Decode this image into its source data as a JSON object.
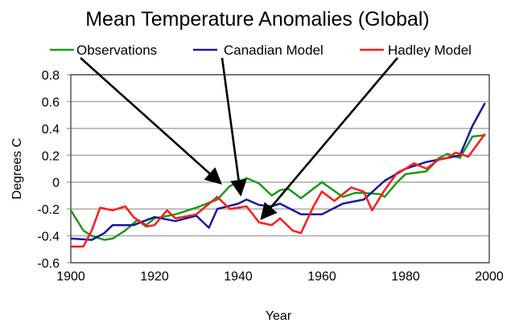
{
  "chart_data": {
    "type": "line",
    "title": "Mean Temperature Anomalies (Global)",
    "xlabel": "Year",
    "ylabel": "Degrees C",
    "xlim": [
      1900,
      2000
    ],
    "ylim": [
      -0.6,
      0.8
    ],
    "xticks": [
      "1900",
      "1920",
      "1940",
      "1960",
      "1980",
      "2000"
    ],
    "yticks": [
      "0.8",
      "0.6",
      "0.4",
      "0.2",
      "0",
      "-0.2",
      "-0.4",
      "-0.6"
    ],
    "grid": true,
    "legend": "top",
    "series": [
      {
        "name": "Observations",
        "color": "#1a9a1a",
        "x": [
          1900,
          1903,
          1905,
          1908,
          1910,
          1913,
          1916,
          1918,
          1920,
          1925,
          1930,
          1935,
          1938,
          1942,
          1945,
          1948,
          1950,
          1952,
          1955,
          1960,
          1965,
          1968,
          1970,
          1974,
          1975,
          1978,
          1980,
          1985,
          1988,
          1990,
          1993,
          1996,
          1999
        ],
        "y": [
          -0.21,
          -0.36,
          -0.4,
          -0.43,
          -0.42,
          -0.36,
          -0.28,
          -0.32,
          -0.27,
          -0.24,
          -0.19,
          -0.13,
          -0.03,
          0.03,
          -0.01,
          -0.1,
          -0.06,
          -0.05,
          -0.12,
          0.0,
          -0.11,
          -0.08,
          -0.08,
          -0.09,
          -0.11,
          0.0,
          0.06,
          0.08,
          0.18,
          0.21,
          0.18,
          0.34,
          0.35
        ]
      },
      {
        "name": "Canadian Model",
        "color": "#1a1a9a",
        "x": [
          1900,
          1905,
          1908,
          1910,
          1915,
          1920,
          1925,
          1930,
          1933,
          1935,
          1940,
          1942,
          1945,
          1948,
          1950,
          1955,
          1960,
          1965,
          1970,
          1975,
          1980,
          1985,
          1990,
          1993,
          1996,
          1999
        ],
        "y": [
          -0.42,
          -0.43,
          -0.38,
          -0.32,
          -0.32,
          -0.26,
          -0.29,
          -0.25,
          -0.34,
          -0.2,
          -0.16,
          -0.13,
          -0.17,
          -0.18,
          -0.16,
          -0.24,
          -0.24,
          -0.16,
          -0.13,
          0.01,
          0.1,
          0.15,
          0.18,
          0.2,
          0.42,
          0.59
        ]
      },
      {
        "name": "Hadley Model",
        "color": "#ff1a1a",
        "x": [
          1900,
          1903,
          1905,
          1907,
          1910,
          1913,
          1915,
          1918,
          1920,
          1923,
          1925,
          1930,
          1935,
          1938,
          1942,
          1945,
          1948,
          1950,
          1953,
          1955,
          1958,
          1960,
          1963,
          1967,
          1970,
          1972,
          1975,
          1978,
          1980,
          1982,
          1985,
          1988,
          1990,
          1992,
          1995,
          1999
        ],
        "y": [
          -0.48,
          -0.48,
          -0.36,
          -0.19,
          -0.21,
          -0.18,
          -0.26,
          -0.33,
          -0.32,
          -0.21,
          -0.27,
          -0.24,
          -0.11,
          -0.2,
          -0.18,
          -0.3,
          -0.32,
          -0.27,
          -0.36,
          -0.38,
          -0.18,
          -0.07,
          -0.14,
          -0.04,
          -0.07,
          -0.21,
          -0.06,
          0.07,
          0.1,
          0.14,
          0.1,
          0.17,
          0.18,
          0.22,
          0.19,
          0.36
        ]
      }
    ]
  }
}
